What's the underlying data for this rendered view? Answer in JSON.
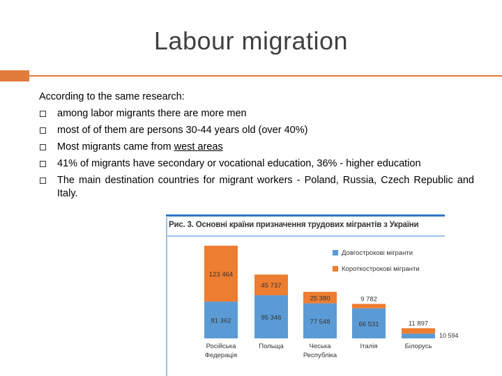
{
  "slide": {
    "title": "Labour migration",
    "intro": "According to the same research:",
    "bullets": [
      "among labor migrants there are more men",
      "most of of them are persons 30-44 years old (over 40%)",
      "Most migrants came from ",
      "41% of migrants have secondary or vocational education, 36% - higher education",
      "The main destination countries for migrant workers - Poland, Russia, Czech Republic and Italy."
    ],
    "bullet3_underlined": "west areas"
  },
  "figure": {
    "caption": "Рис. 3. Основні країни призначення трудових мігрантів з України",
    "colors": {
      "long_term": "#5b9bd5",
      "short_term": "#ed7d31",
      "accent": "#e07b39",
      "frame": "#2f76c8"
    }
  },
  "chart_data": {
    "type": "bar",
    "stacked": true,
    "categories": [
      "Російська Федерація",
      "Польща",
      "Чеська Республіка",
      "Італія",
      "Білорусь"
    ],
    "category_lines": [
      [
        "Російська",
        "Федерація"
      ],
      [
        "Польща"
      ],
      [
        "Чеська",
        "Республіка"
      ],
      [
        "Італія"
      ],
      [
        "Білорусь"
      ]
    ],
    "series": [
      {
        "name": "Довгострокові мігранти",
        "color": "#5b9bd5",
        "values": [
          81362,
          95346,
          77548,
          66531,
          10594
        ]
      },
      {
        "name": "Короткострокові мігранти",
        "color": "#ed7d31",
        "values": [
          123464,
          45737,
          25380,
          9782,
          11897
        ]
      }
    ],
    "labels": {
      "long_term": [
        "81 362",
        "95 346",
        "77 548",
        "66 531",
        "10 594"
      ],
      "short_term": [
        "123 464",
        "45 737",
        "25 380",
        "9 782",
        "11 897"
      ]
    },
    "legend_position": "top-right",
    "grid": false
  }
}
